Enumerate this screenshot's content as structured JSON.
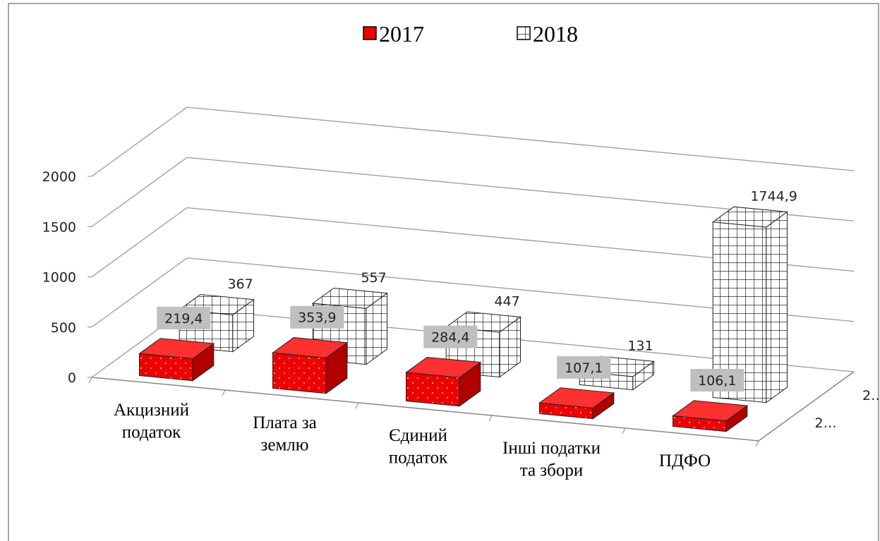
{
  "chart_data": {
    "type": "bar3d",
    "categories": [
      "Акцизний\nподаток",
      "Плата за\nземлю",
      "Єдиний\nподаток",
      "Інші податки\nта збори",
      "ПДФО"
    ],
    "series": [
      {
        "name": "2017",
        "color": "#ee0000",
        "values": [
          219.4,
          353.9,
          284.4,
          107.1,
          106.1
        ],
        "value_labels": [
          "219,4",
          "353,9",
          "284,4",
          "107,1",
          "106,1"
        ]
      },
      {
        "name": "2018",
        "color": "#ffffff",
        "values": [
          367,
          557,
          447,
          131,
          1744.9
        ],
        "value_labels": [
          "367",
          "557",
          "447",
          "131",
          "1744,9"
        ]
      }
    ],
    "depth_labels": [
      "2…",
      "2…"
    ],
    "ylim": [
      0,
      2000
    ],
    "yticks": [
      0,
      500,
      1000,
      1500,
      2000
    ],
    "grid": true,
    "legend": "top"
  }
}
